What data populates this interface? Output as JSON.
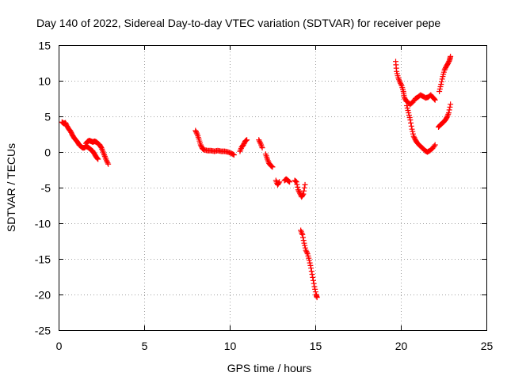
{
  "chart_data": {
    "type": "scatter",
    "title": "Day 140 of 2022, Sidereal Day-to-day VTEC variation (SDTVAR) for receiver pepe",
    "xlabel": "GPS time / hours",
    "ylabel": "SDTVAR / TECUs",
    "xlim": [
      0,
      25
    ],
    "ylim": [
      -25,
      15
    ],
    "xticks": [
      0,
      5,
      10,
      15,
      20,
      25
    ],
    "yticks": [
      -25,
      -20,
      -15,
      -10,
      -5,
      0,
      5,
      10,
      15
    ],
    "grid": true,
    "marker": "+",
    "color": "#ff0000",
    "segments": [
      [
        [
          0.2,
          4.2
        ],
        [
          0.3,
          4.0
        ],
        [
          0.4,
          4.1
        ],
        [
          0.5,
          3.6
        ],
        [
          0.6,
          3.2
        ],
        [
          0.7,
          2.9
        ],
        [
          0.8,
          2.4
        ],
        [
          0.9,
          2.0
        ],
        [
          1.0,
          1.7
        ],
        [
          1.1,
          1.4
        ],
        [
          1.2,
          1.0
        ],
        [
          1.3,
          0.8
        ],
        [
          1.4,
          0.6
        ],
        [
          1.5,
          0.6
        ],
        [
          1.6,
          0.8
        ],
        [
          1.7,
          0.7
        ],
        [
          1.8,
          0.5
        ],
        [
          1.9,
          0.3
        ],
        [
          2.0,
          0.1
        ],
        [
          2.1,
          -0.3
        ],
        [
          2.2,
          -0.7
        ],
        [
          2.3,
          -1.0
        ]
      ],
      [
        [
          1.6,
          1.2
        ],
        [
          1.7,
          1.5
        ],
        [
          1.8,
          1.6
        ],
        [
          1.9,
          1.5
        ],
        [
          2.0,
          1.4
        ],
        [
          2.1,
          1.5
        ],
        [
          2.2,
          1.4
        ],
        [
          2.3,
          1.2
        ],
        [
          2.4,
          1.0
        ],
        [
          2.5,
          0.6
        ],
        [
          2.6,
          0.0
        ],
        [
          2.7,
          -0.6
        ],
        [
          2.8,
          -1.2
        ],
        [
          2.9,
          -1.7
        ]
      ],
      [
        [
          8.0,
          3.0
        ],
        [
          8.1,
          2.5
        ],
        [
          8.2,
          1.8
        ],
        [
          8.3,
          1.0
        ],
        [
          8.4,
          0.5
        ],
        [
          8.5,
          0.3
        ],
        [
          8.7,
          0.2
        ],
        [
          8.9,
          0.2
        ],
        [
          9.1,
          0.1
        ],
        [
          9.3,
          0.2
        ],
        [
          9.5,
          0.1
        ],
        [
          9.7,
          0.1
        ],
        [
          9.9,
          0.0
        ],
        [
          10.1,
          -0.2
        ],
        [
          10.25,
          -0.4
        ]
      ],
      [
        [
          10.6,
          0.1
        ],
        [
          10.7,
          0.7
        ],
        [
          10.8,
          1.0
        ],
        [
          10.9,
          1.5
        ],
        [
          11.0,
          1.7
        ]
      ],
      [
        [
          11.7,
          1.7
        ],
        [
          11.8,
          1.2
        ],
        [
          11.9,
          0.6
        ]
      ],
      [
        [
          12.1,
          -0.3
        ],
        [
          12.2,
          -1.0
        ],
        [
          12.3,
          -1.6
        ],
        [
          12.4,
          -1.9
        ],
        [
          12.5,
          -2.1
        ]
      ],
      [
        [
          12.7,
          -4.0
        ],
        [
          12.8,
          -4.6
        ],
        [
          12.9,
          -4.2
        ]
      ],
      [
        [
          13.2,
          -4.0
        ],
        [
          13.3,
          -3.8
        ],
        [
          13.4,
          -4.0
        ],
        [
          13.5,
          -4.2
        ]
      ],
      [
        [
          13.8,
          -4.0
        ],
        [
          13.9,
          -4.2
        ],
        [
          14.0,
          -5.3
        ],
        [
          14.1,
          -5.8
        ],
        [
          14.2,
          -6.3
        ],
        [
          14.3,
          -5.9
        ],
        [
          14.4,
          -4.6
        ]
      ],
      [
        [
          14.15,
          -11.0
        ],
        [
          14.25,
          -11.6
        ],
        [
          14.35,
          -12.8
        ],
        [
          14.45,
          -13.8
        ],
        [
          14.55,
          -14.3
        ],
        [
          14.65,
          -15.2
        ],
        [
          14.75,
          -16.3
        ],
        [
          14.85,
          -17.6
        ],
        [
          14.95,
          -18.9
        ],
        [
          15.05,
          -20.0
        ],
        [
          15.1,
          -20.4
        ]
      ],
      [
        [
          19.7,
          12.7
        ],
        [
          19.75,
          11.3
        ],
        [
          19.85,
          10.4
        ],
        [
          19.95,
          9.8
        ],
        [
          20.05,
          9.3
        ],
        [
          20.15,
          8.5
        ],
        [
          20.2,
          7.7
        ],
        [
          20.3,
          7.2
        ],
        [
          20.4,
          7.0
        ],
        [
          20.55,
          6.7
        ],
        [
          20.7,
          7.0
        ],
        [
          20.85,
          7.5
        ],
        [
          21.0,
          7.7
        ],
        [
          21.15,
          8.0
        ],
        [
          21.3,
          7.8
        ],
        [
          21.45,
          7.6
        ],
        [
          21.6,
          7.7
        ],
        [
          21.75,
          8.0
        ],
        [
          21.9,
          7.6
        ],
        [
          22.0,
          7.3
        ]
      ],
      [
        [
          20.35,
          6.5
        ],
        [
          20.45,
          5.5
        ],
        [
          20.55,
          4.5
        ],
        [
          20.65,
          3.2
        ],
        [
          20.75,
          2.2
        ],
        [
          20.85,
          1.7
        ],
        [
          20.95,
          1.3
        ],
        [
          21.1,
          0.9
        ],
        [
          21.25,
          0.6
        ],
        [
          21.4,
          0.2
        ],
        [
          21.55,
          0.0
        ],
        [
          21.7,
          0.2
        ],
        [
          21.85,
          0.5
        ],
        [
          22.0,
          1.0
        ]
      ],
      [
        [
          22.2,
          3.5
        ],
        [
          22.3,
          3.8
        ],
        [
          22.4,
          4.0
        ],
        [
          22.5,
          4.2
        ],
        [
          22.6,
          4.5
        ],
        [
          22.7,
          4.9
        ],
        [
          22.8,
          5.5
        ],
        [
          22.9,
          6.7
        ]
      ],
      [
        [
          22.25,
          8.5
        ],
        [
          22.35,
          9.5
        ],
        [
          22.45,
          10.6
        ],
        [
          22.55,
          11.5
        ],
        [
          22.65,
          12.0
        ],
        [
          22.75,
          12.4
        ],
        [
          22.85,
          12.9
        ],
        [
          22.9,
          13.4
        ]
      ]
    ]
  }
}
